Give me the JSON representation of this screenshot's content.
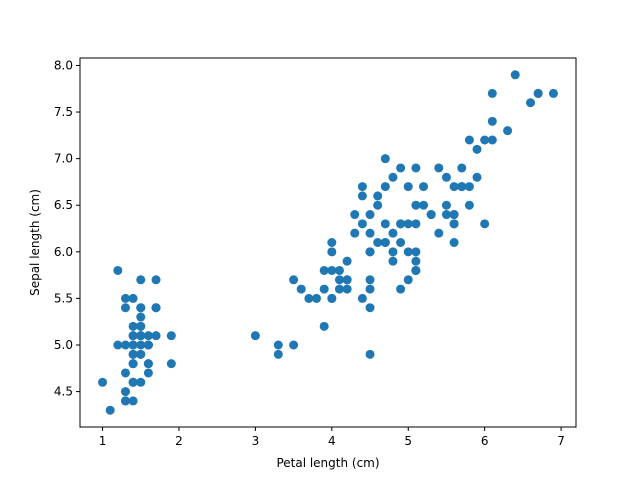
{
  "chart_data": {
    "type": "scatter",
    "title": "",
    "xlabel": "Petal length (cm)",
    "ylabel": "Sepal length (cm)",
    "xlim": [
      0.705,
      7.195
    ],
    "ylim": [
      4.12,
      8.08
    ],
    "xticks": [
      1,
      2,
      3,
      4,
      5,
      6,
      7
    ],
    "xtick_labels": [
      "1",
      "2",
      "3",
      "4",
      "5",
      "6",
      "7"
    ],
    "yticks": [
      4.5,
      5.0,
      5.5,
      6.0,
      6.5,
      7.0,
      7.5,
      8.0
    ],
    "ytick_labels": [
      "4.5",
      "5.0",
      "5.5",
      "6.0",
      "6.5",
      "7.0",
      "7.5",
      "8.0"
    ],
    "grid": false,
    "marker_color": "#1f77b4",
    "series": [
      {
        "points": [
          [
            1.4,
            5.1
          ],
          [
            1.4,
            4.9
          ],
          [
            1.3,
            4.7
          ],
          [
            1.5,
            4.6
          ],
          [
            1.4,
            5.0
          ],
          [
            1.7,
            5.4
          ],
          [
            1.4,
            4.6
          ],
          [
            1.5,
            5.0
          ],
          [
            1.4,
            4.4
          ],
          [
            1.5,
            4.9
          ],
          [
            1.5,
            5.4
          ],
          [
            1.6,
            4.8
          ],
          [
            1.4,
            4.8
          ],
          [
            1.1,
            4.3
          ],
          [
            1.2,
            5.8
          ],
          [
            1.5,
            5.7
          ],
          [
            1.3,
            5.4
          ],
          [
            1.4,
            5.1
          ],
          [
            1.7,
            5.7
          ],
          [
            1.5,
            5.1
          ],
          [
            1.7,
            5.4
          ],
          [
            1.5,
            5.1
          ],
          [
            1.0,
            4.6
          ],
          [
            1.7,
            5.1
          ],
          [
            1.9,
            4.8
          ],
          [
            1.6,
            5.0
          ],
          [
            1.6,
            5.0
          ],
          [
            1.5,
            5.2
          ],
          [
            1.4,
            5.2
          ],
          [
            1.6,
            4.7
          ],
          [
            1.6,
            4.8
          ],
          [
            1.5,
            5.4
          ],
          [
            1.5,
            5.2
          ],
          [
            1.4,
            5.5
          ],
          [
            1.5,
            4.9
          ],
          [
            1.2,
            5.0
          ],
          [
            1.3,
            5.5
          ],
          [
            1.4,
            4.9
          ],
          [
            1.3,
            4.4
          ],
          [
            1.5,
            5.1
          ],
          [
            1.3,
            5.0
          ],
          [
            1.3,
            4.5
          ],
          [
            1.3,
            4.4
          ],
          [
            1.6,
            5.0
          ],
          [
            1.9,
            5.1
          ],
          [
            1.4,
            4.8
          ],
          [
            1.6,
            5.1
          ],
          [
            1.4,
            4.6
          ],
          [
            1.5,
            5.3
          ],
          [
            1.4,
            5.0
          ],
          [
            4.7,
            7.0
          ],
          [
            4.5,
            6.4
          ],
          [
            4.9,
            6.9
          ],
          [
            4.0,
            5.5
          ],
          [
            4.6,
            6.5
          ],
          [
            4.5,
            5.7
          ],
          [
            4.7,
            6.3
          ],
          [
            3.3,
            4.9
          ],
          [
            4.6,
            6.6
          ],
          [
            3.9,
            5.2
          ],
          [
            3.5,
            5.0
          ],
          [
            4.2,
            5.9
          ],
          [
            4.0,
            6.0
          ],
          [
            4.7,
            6.1
          ],
          [
            3.6,
            5.6
          ],
          [
            4.4,
            6.7
          ],
          [
            4.5,
            5.6
          ],
          [
            4.1,
            5.8
          ],
          [
            4.5,
            6.2
          ],
          [
            3.9,
            5.6
          ],
          [
            4.8,
            5.9
          ],
          [
            4.0,
            6.1
          ],
          [
            4.9,
            6.3
          ],
          [
            4.7,
            6.1
          ],
          [
            4.3,
            6.4
          ],
          [
            4.4,
            6.6
          ],
          [
            4.8,
            6.8
          ],
          [
            5.0,
            6.7
          ],
          [
            4.5,
            6.0
          ],
          [
            3.5,
            5.7
          ],
          [
            3.8,
            5.5
          ],
          [
            3.7,
            5.5
          ],
          [
            3.9,
            5.8
          ],
          [
            5.1,
            6.0
          ],
          [
            4.5,
            5.4
          ],
          [
            4.5,
            6.0
          ],
          [
            4.7,
            6.7
          ],
          [
            4.4,
            6.3
          ],
          [
            4.1,
            5.6
          ],
          [
            4.0,
            5.5
          ],
          [
            4.4,
            5.5
          ],
          [
            4.6,
            6.1
          ],
          [
            4.0,
            5.8
          ],
          [
            3.3,
            5.0
          ],
          [
            4.2,
            5.6
          ],
          [
            4.2,
            5.7
          ],
          [
            4.2,
            5.7
          ],
          [
            4.3,
            6.2
          ],
          [
            3.0,
            5.1
          ],
          [
            4.1,
            5.7
          ],
          [
            6.0,
            6.3
          ],
          [
            5.1,
            5.8
          ],
          [
            5.9,
            7.1
          ],
          [
            5.6,
            6.3
          ],
          [
            5.8,
            6.5
          ],
          [
            6.6,
            7.6
          ],
          [
            4.5,
            4.9
          ],
          [
            6.3,
            7.3
          ],
          [
            5.8,
            6.7
          ],
          [
            6.1,
            7.2
          ],
          [
            5.1,
            6.5
          ],
          [
            5.3,
            6.4
          ],
          [
            5.5,
            6.8
          ],
          [
            5.0,
            5.7
          ],
          [
            5.1,
            5.8
          ],
          [
            5.3,
            6.4
          ],
          [
            5.5,
            6.5
          ],
          [
            6.7,
            7.7
          ],
          [
            6.9,
            7.7
          ],
          [
            5.0,
            6.0
          ],
          [
            5.7,
            6.9
          ],
          [
            4.9,
            5.6
          ],
          [
            6.7,
            7.7
          ],
          [
            4.9,
            6.3
          ],
          [
            5.7,
            6.7
          ],
          [
            6.0,
            7.2
          ],
          [
            4.8,
            6.2
          ],
          [
            4.9,
            6.1
          ],
          [
            5.6,
            6.4
          ],
          [
            5.8,
            7.2
          ],
          [
            6.1,
            7.4
          ],
          [
            6.4,
            7.9
          ],
          [
            5.6,
            6.4
          ],
          [
            5.1,
            6.3
          ],
          [
            5.6,
            6.1
          ],
          [
            6.1,
            7.7
          ],
          [
            5.6,
            6.3
          ],
          [
            5.5,
            6.4
          ],
          [
            4.8,
            6.0
          ],
          [
            5.4,
            6.9
          ],
          [
            5.6,
            6.7
          ],
          [
            5.1,
            6.9
          ],
          [
            5.1,
            5.8
          ],
          [
            5.9,
            6.8
          ],
          [
            5.7,
            6.7
          ],
          [
            5.2,
            6.7
          ],
          [
            5.0,
            6.3
          ],
          [
            5.2,
            6.5
          ],
          [
            5.4,
            6.2
          ],
          [
            5.1,
            5.9
          ]
        ]
      }
    ]
  }
}
